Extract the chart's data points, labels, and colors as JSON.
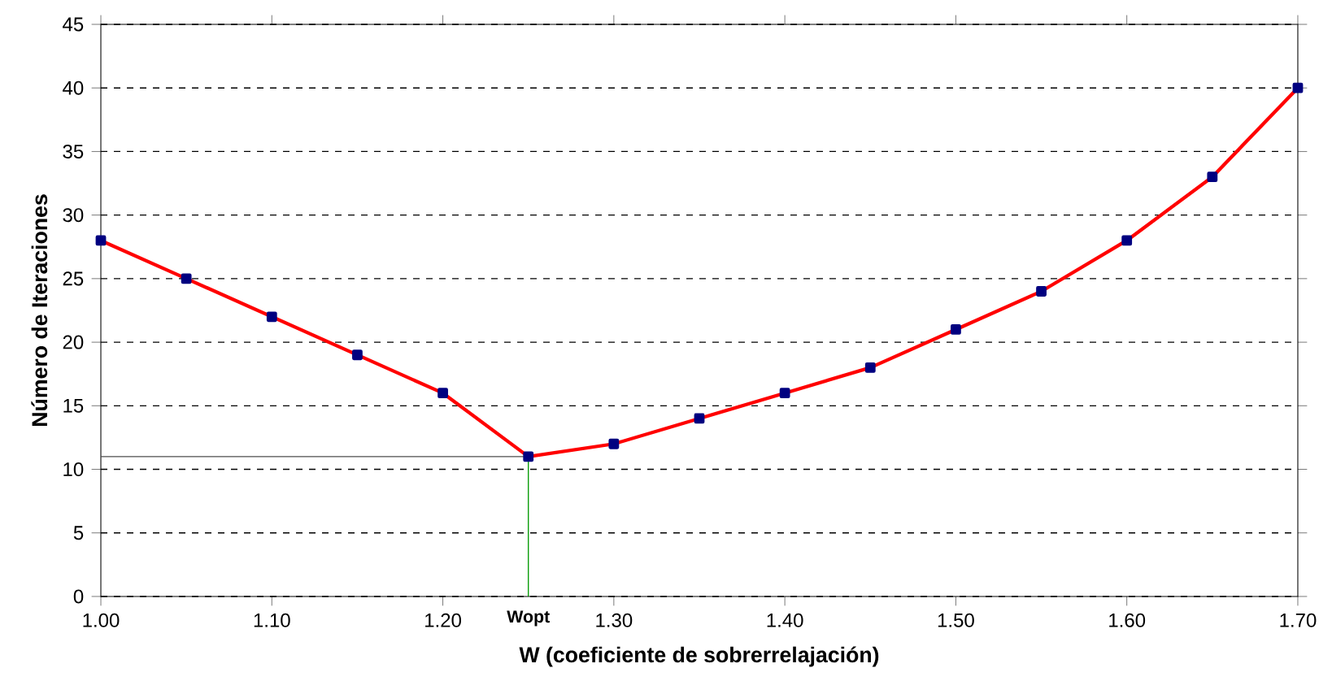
{
  "chart_data": {
    "type": "line",
    "xlabel": "W (coeficiente de sobrerrelajación)",
    "ylabel": "Número de Iteraciones",
    "x": [
      1.0,
      1.05,
      1.1,
      1.15,
      1.2,
      1.25,
      1.3,
      1.35,
      1.4,
      1.45,
      1.5,
      1.55,
      1.6,
      1.65,
      1.7
    ],
    "series": [
      {
        "color": "#ff0000",
        "values": [
          28,
          25,
          22,
          19,
          16,
          11,
          12,
          14,
          16,
          18,
          21,
          24,
          28,
          33,
          40
        ]
      }
    ],
    "xlim": [
      1.0,
      1.7
    ],
    "xticks": [
      {
        "value": 1.0,
        "label": "1.00"
      },
      {
        "value": 1.1,
        "label": "1.10"
      },
      {
        "value": 1.2,
        "label": "1.20"
      },
      {
        "value": 1.3,
        "label": "1.30"
      },
      {
        "value": 1.4,
        "label": "1.40"
      },
      {
        "value": 1.5,
        "label": "1.50"
      },
      {
        "value": 1.6,
        "label": "1.60"
      },
      {
        "value": 1.7,
        "label": "1.70"
      }
    ],
    "ylim": [
      0,
      45
    ],
    "yticks": [
      0,
      5,
      10,
      15,
      20,
      25,
      30,
      35,
      40,
      45
    ],
    "grid": "y",
    "marker": "square",
    "line_style": "solid",
    "ref_lines": [
      {
        "axis": "y",
        "value": 11,
        "color": "#4c4c4c"
      },
      {
        "axis": "x",
        "value": 1.25,
        "color": "#009900",
        "label": "Wopt"
      }
    ]
  }
}
